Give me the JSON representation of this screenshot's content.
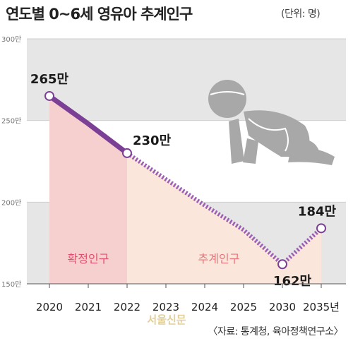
{
  "header": {
    "title": "연도별 0~6세 영유아 추계인구",
    "unit": "(단위: 명)"
  },
  "footer": {
    "source": "〈자료: 통계청, 육아정책연구소〉",
    "watermark": "서울신문"
  },
  "chart_data": {
    "type": "line",
    "x": [
      "2020",
      "2021",
      "2022",
      "2023",
      "2024",
      "2025",
      "2030",
      "2035년"
    ],
    "y_ticks": [
      "300만",
      "250만",
      "200만",
      "150만"
    ],
    "y_tick_values": [
      300,
      250,
      200,
      150
    ],
    "ylim": [
      150,
      300
    ],
    "grid": true,
    "series": [
      {
        "values": [
          265,
          248,
          230,
          214,
          198,
          183,
          162,
          184
        ]
      }
    ],
    "confirmed_range": [
      "2020",
      "2022"
    ],
    "projected_range": [
      "2022",
      "2035년"
    ],
    "zones": {
      "confirmed": "확정인구",
      "projected": "추계인구"
    },
    "annotations": [
      {
        "x": "2020",
        "text": "265만"
      },
      {
        "x": "2022",
        "text": "230만"
      },
      {
        "x": "2030",
        "text": "162만"
      },
      {
        "x": "2035년",
        "text": "184만"
      }
    ],
    "colors": {
      "confirmed_line": "#7b3f95",
      "projected_line": "#9b5fb5",
      "confirmed_fill": "#f6cfcf",
      "projected_fill": "#fbe6dc",
      "band": "#e6e6e6",
      "confirmed_text": "#e0506e",
      "projected_text": "#e8747a",
      "baby": "#a8a8a8"
    },
    "icon": "crawling-baby-icon"
  }
}
